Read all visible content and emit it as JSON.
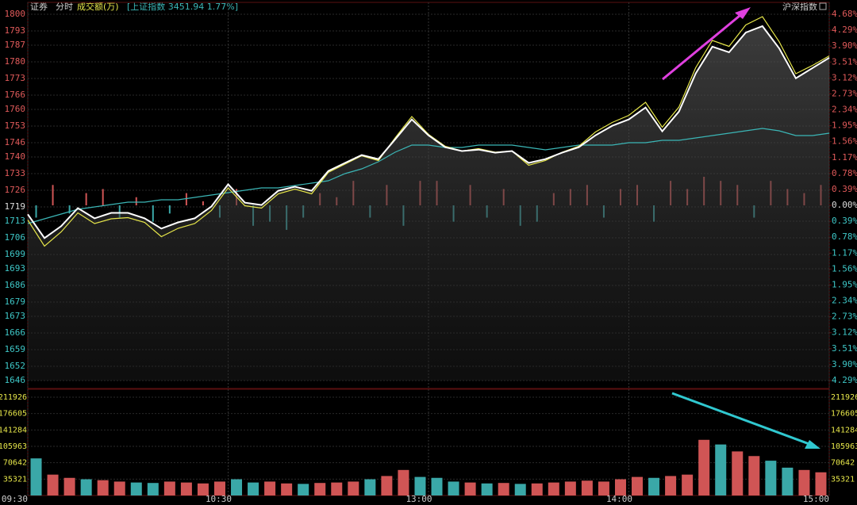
{
  "header": {
    "tabs": [
      "证券",
      "分时"
    ],
    "indicator": "成交额(万)",
    "index_info": "[上证指数 3451.94 1.77%]",
    "right_label": "沪深指数"
  },
  "chart_data": {
    "type": "line",
    "xlim": [
      0,
      240
    ],
    "xticks": [
      {
        "value": 0,
        "label": "09:30"
      },
      {
        "value": 60,
        "label": "10:30"
      },
      {
        "value": 120,
        "label": "13:00"
      },
      {
        "value": 180,
        "label": "14:00"
      },
      {
        "value": 240,
        "label": "15:00"
      }
    ],
    "ylim": [
      1646,
      1800
    ],
    "yticks": [
      1800,
      1793,
      1787,
      1780,
      1773,
      1766,
      1760,
      1753,
      1746,
      1740,
      1733,
      1726,
      1719,
      1713,
      1706,
      1699,
      1693,
      1686,
      1679,
      1673,
      1666,
      1659,
      1652,
      1646
    ],
    "y2lim": [
      -4.29,
      4.68
    ],
    "y2ticks": [
      {
        "value": 4.68,
        "label": "4.68%"
      },
      {
        "value": 4.29,
        "label": "4.29%"
      },
      {
        "value": 3.9,
        "label": "3.90%"
      },
      {
        "value": 3.51,
        "label": "3.51%"
      },
      {
        "value": 3.12,
        "label": "3.12%"
      },
      {
        "value": 2.73,
        "label": "2.73%"
      },
      {
        "value": 2.34,
        "label": "2.34%"
      },
      {
        "value": 1.95,
        "label": "1.95%"
      },
      {
        "value": 1.56,
        "label": "1.56%"
      },
      {
        "value": 1.17,
        "label": "1.17%"
      },
      {
        "value": 0.78,
        "label": "0.78%"
      },
      {
        "value": 0.39,
        "label": "0.39%"
      },
      {
        "value": 0,
        "label": "0.00%"
      },
      {
        "value": -0.39,
        "label": "0.39%"
      },
      {
        "value": -0.78,
        "label": "0.78%"
      },
      {
        "value": -1.17,
        "label": "1.17%"
      },
      {
        "value": -1.56,
        "label": "1.56%"
      },
      {
        "value": -1.95,
        "label": "1.95%"
      },
      {
        "value": -2.34,
        "label": "2.34%"
      },
      {
        "value": -2.73,
        "label": "2.73%"
      },
      {
        "value": -3.12,
        "label": "3.12%"
      },
      {
        "value": -3.51,
        "label": "3.51%"
      },
      {
        "value": -3.9,
        "label": "3.90%"
      },
      {
        "value": -4.29,
        "label": "4.29%"
      }
    ],
    "grid": true,
    "x": [
      0,
      5,
      10,
      15,
      20,
      25,
      30,
      35,
      40,
      45,
      50,
      55,
      60,
      65,
      70,
      75,
      80,
      85,
      90,
      95,
      100,
      105,
      110,
      115,
      120,
      125,
      130,
      135,
      140,
      145,
      150,
      155,
      160,
      165,
      170,
      175,
      180,
      185,
      190,
      195,
      200,
      205,
      210,
      215,
      220,
      225,
      230,
      235,
      240
    ],
    "series": [
      {
        "color": "#3bb6b6",
        "values": [
          1712,
          1714,
          1716,
          1718,
          1719,
          1720,
          1721,
          1721,
          1722,
          1722,
          1723,
          1724,
          1725,
          1726,
          1727,
          1727,
          1728,
          1729,
          1730,
          1733,
          1735,
          1738,
          1742,
          1745,
          1745,
          1744,
          1744,
          1745,
          1745,
          1745,
          1744,
          1743,
          1744,
          1745,
          1745,
          1745,
          1746,
          1746,
          1747,
          1747,
          1748,
          1749,
          1750,
          1751,
          1752,
          1751,
          1749,
          1749,
          1750
        ]
      },
      {
        "color": "#e6e64a",
        "values": [
          1713.5,
          1702.5,
          1708.5,
          1716.5,
          1712.0,
          1714.0,
          1714.5,
          1712.5,
          1706.5,
          1710.0,
          1712.0,
          1717.5,
          1727.0,
          1719.5,
          1718.5,
          1724.5,
          1726.5,
          1724.5,
          1733.5,
          1737.0,
          1740.5,
          1738.5,
          1748.0,
          1757.0,
          1749.5,
          1744.5,
          1742.5,
          1743.5,
          1742.0,
          1742.5,
          1736.5,
          1738.5,
          1742.0,
          1744.5,
          1750.5,
          1754.5,
          1757.5,
          1763.0,
          1752.5,
          1761.0,
          1777.5,
          1789.0,
          1786.5,
          1795.5,
          1799.0,
          1788.5,
          1775.0,
          1778.5,
          1782.5
        ]
      },
      {
        "color": "#ffffff",
        "values": [
          1715.9,
          1705.9,
          1710.9,
          1718.5,
          1714.2,
          1716.5,
          1716.5,
          1714.2,
          1709.9,
          1712.5,
          1714.2,
          1719.2,
          1728.5,
          1720.8,
          1719.8,
          1725.8,
          1727.5,
          1725.8,
          1734.1,
          1737.5,
          1740.8,
          1739.1,
          1747.4,
          1755.8,
          1749.1,
          1744.1,
          1742.5,
          1743.1,
          1741.8,
          1742.5,
          1737.5,
          1739.1,
          1741.8,
          1744.1,
          1749.1,
          1753.1,
          1755.8,
          1760.8,
          1750.8,
          1759.1,
          1775.1,
          1786.4,
          1784.0,
          1792.3,
          1795.0,
          1785.7,
          1773.1,
          1777.4,
          1781.7
        ]
      }
    ],
    "bar_x": [
      2.5,
      7.5,
      12.5,
      17.5,
      22.5,
      27.5,
      32.5,
      37.5,
      42.5,
      47.5,
      52.5,
      57.5,
      62.5,
      67.5,
      72.5,
      77.5,
      82.5,
      87.5,
      92.5,
      97.5,
      102.5,
      107.5,
      112.5,
      117.5,
      122.5,
      127.5,
      132.5,
      137.5,
      142.5,
      147.5,
      152.5,
      157.5,
      162.5,
      167.5,
      172.5,
      177.5,
      182.5,
      187.5,
      192.5,
      197.5,
      202.5,
      207.5,
      212.5,
      217.5,
      222.5,
      227.5,
      232.5,
      237.5
    ],
    "bar_values": [
      -0.3,
      0.5,
      -0.2,
      0.3,
      0.4,
      -0.3,
      0.2,
      -0.4,
      -0.2,
      0.3,
      0.1,
      -0.3,
      0.4,
      -0.5,
      -0.4,
      -0.6,
      -0.3,
      0.3,
      0.2,
      0.6,
      -0.3,
      0.5,
      -0.5,
      0.6,
      0.6,
      -0.4,
      0.5,
      -0.3,
      0.4,
      -0.5,
      -0.4,
      0.3,
      0.4,
      0.5,
      -0.3,
      0.4,
      0.5,
      -0.4,
      0.6,
      0.4,
      0.7,
      0.6,
      0.5,
      -0.3,
      0.6,
      0.4,
      0.3,
      0.5
    ],
    "up_color": "#d05555",
    "down_color": "#3aa8a8",
    "volume": {
      "ylim": [
        0,
        211926
      ],
      "yticks": [
        211926,
        176605,
        141284,
        105963,
        70642,
        35321
      ],
      "values": [
        80000,
        45000,
        38000,
        35000,
        33000,
        30000,
        28000,
        27000,
        30000,
        28000,
        26000,
        30000,
        35000,
        28000,
        30000,
        26000,
        25000,
        27000,
        28000,
        30000,
        35000,
        42000,
        55000,
        40000,
        38000,
        30000,
        28000,
        26000,
        27000,
        25000,
        26000,
        28000,
        30000,
        32000,
        30000,
        35000,
        40000,
        38000,
        42000,
        45000,
        120000,
        110000,
        95000,
        85000,
        75000,
        60000,
        55000,
        50000
      ]
    }
  }
}
